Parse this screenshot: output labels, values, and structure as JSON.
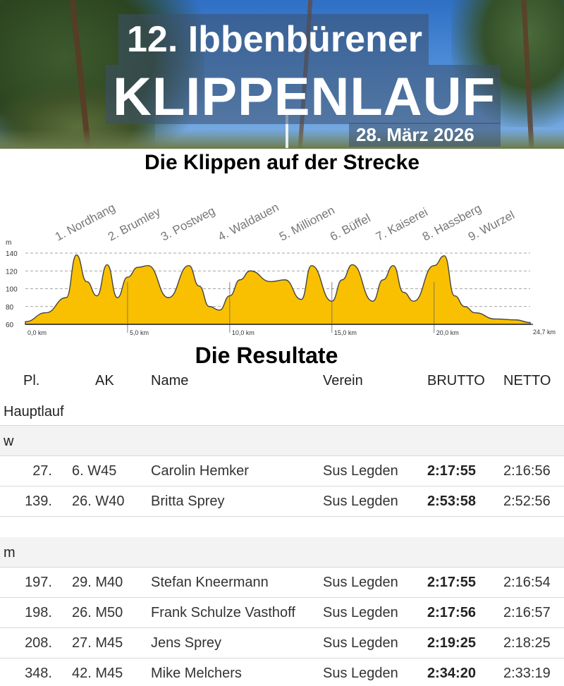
{
  "banner": {
    "title_line1": "12. Ibbenbürener",
    "title_line2": "KLIPPENLAUF",
    "date": "28. März 2026"
  },
  "profile_heading": "Die Klippen auf der Strecke",
  "results_heading": "Die Resultate",
  "profile": {
    "unit": "m",
    "y_ticks": [
      "140",
      "120",
      "100",
      "80",
      "60"
    ],
    "km_labels": [
      "0,0 km",
      "5,0 km",
      "10,0 km",
      "15,0 km",
      "20,0 km",
      "24,7 km"
    ],
    "cliffs": [
      "1. Nordhang",
      "2. Brumley",
      "3. Postweg",
      "4. Waldauen",
      "5. Millionen",
      "6. Büffel",
      "7. Kaiserei",
      "8. Hassberg",
      "9. Wurzel"
    ],
    "fill_color": "#f8c000",
    "chart_data": {
      "type": "area",
      "xlabel": "",
      "ylabel": "m",
      "ylim": [
        60,
        140
      ],
      "xlim": [
        0,
        24.7
      ],
      "x": [
        0,
        1,
        2,
        2.5,
        3,
        3.5,
        4,
        4.5,
        5,
        5.5,
        6,
        7,
        8,
        8.5,
        9,
        9.5,
        10,
        10.5,
        11,
        12,
        12.7,
        13.5,
        14,
        15,
        15.5,
        16,
        17,
        17.5,
        18,
        18.5,
        19,
        20,
        20.5,
        21,
        21.5,
        22,
        23,
        24,
        24.7
      ],
      "y": [
        63,
        73,
        90,
        138,
        108,
        92,
        127,
        90,
        113,
        124,
        126,
        90,
        126,
        103,
        80,
        76,
        92,
        110,
        120,
        108,
        110,
        88,
        126,
        86,
        110,
        127,
        86,
        110,
        126,
        96,
        86,
        126,
        137,
        92,
        80,
        73,
        66,
        65,
        62
      ]
    }
  },
  "table": {
    "headers": {
      "pl": "Pl.",
      "ak": "AK",
      "name": "Name",
      "verein": "Verein",
      "brutto": "BRUTTO",
      "netto": "NETTO"
    },
    "section": "Hauptlauf",
    "groups": [
      {
        "label": "w",
        "rows": [
          {
            "pl": "27.",
            "ak": "6. W45",
            "name": "Carolin Hemker",
            "verein": "Sus Legden",
            "brutto": "2:17:55",
            "netto": "2:16:56"
          },
          {
            "pl": "139.",
            "ak": "26. W40",
            "name": "Britta Sprey",
            "verein": "Sus Legden",
            "brutto": "2:53:58",
            "netto": "2:52:56"
          }
        ]
      },
      {
        "label": "m",
        "rows": [
          {
            "pl": "197.",
            "ak": "29. M40",
            "name": "Stefan Kneermann",
            "verein": "Sus Legden",
            "brutto": "2:17:55",
            "netto": "2:16:54"
          },
          {
            "pl": "198.",
            "ak": "26. M50",
            "name": "Frank Schulze Vasthoff",
            "verein": "Sus Legden",
            "brutto": "2:17:56",
            "netto": "2:16:57"
          },
          {
            "pl": "208.",
            "ak": "27. M45",
            "name": "Jens Sprey",
            "verein": "Sus Legden",
            "brutto": "2:19:25",
            "netto": "2:18:25"
          },
          {
            "pl": "348.",
            "ak": "42. M45",
            "name": "Mike Melchers",
            "verein": "Sus Legden",
            "brutto": "2:34:20",
            "netto": "2:33:19"
          }
        ]
      }
    ]
  }
}
